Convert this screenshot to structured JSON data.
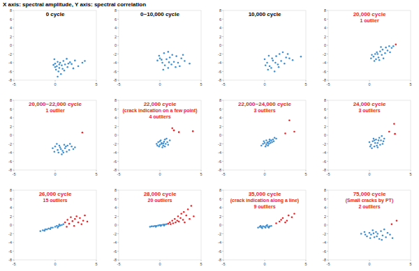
{
  "header": "X axis: spectral amplitude, Y axis: spectral correlation",
  "chart_data": [
    {
      "type": "scatter",
      "title": "0 cycle",
      "xlim": [
        -5,
        5
      ],
      "ylim": [
        -8,
        8
      ],
      "xticks": [
        -5,
        0,
        5
      ],
      "yticks": [
        -8,
        -6,
        -4,
        -2,
        0,
        2,
        4,
        6,
        8
      ],
      "marker": "dot",
      "series": [
        {
          "color": "#3d8fd1",
          "x": [
            0.0,
            0.2,
            0.3,
            0.5,
            0.1,
            -0.2,
            0.6,
            0.8,
            1.0,
            1.2,
            0.4,
            0.7,
            1.5,
            1.8,
            2.0,
            2.4,
            2.8,
            3.3,
            3.6,
            0.9,
            1.1,
            -0.1,
            1.4,
            0.3,
            2.2,
            0.5,
            0.0,
            1.6
          ],
          "values": [
            -4.2,
            -4.8,
            -3.8,
            -5.2,
            -5.6,
            -4.5,
            -4.0,
            -4.6,
            -3.6,
            -4.4,
            -6.0,
            -6.6,
            -5.0,
            -3.9,
            -4.3,
            -3.5,
            -4.8,
            -4.0,
            -3.6,
            -5.4,
            -5.8,
            -3.2,
            -3.1,
            -7.2,
            -5.3,
            -4.4,
            -5.0,
            -4.2
          ]
        }
      ]
    },
    {
      "type": "scatter",
      "title": "0~10,000 cycle",
      "xlim": [
        -5,
        5
      ],
      "ylim": [
        -8,
        8
      ],
      "xticks": [
        -5,
        0,
        5
      ],
      "yticks": [
        -8,
        -6,
        -4,
        -2,
        0,
        2,
        4,
        6,
        8
      ],
      "marker": "dot",
      "series": [
        {
          "color": "#3d8fd1",
          "x": [
            0.5,
            1.0,
            1.5,
            0.0,
            -0.3,
            0.3,
            0.8,
            1.2,
            2.0,
            2.6,
            3.0,
            3.6,
            1.7,
            0.6,
            1.0,
            1.4,
            2.2,
            -0.1,
            0.4,
            2.8,
            1.9,
            0.2,
            1.1,
            2.4
          ],
          "values": [
            -1.8,
            -1.5,
            -2.2,
            -3.0,
            -3.5,
            -4.0,
            -3.2,
            -2.8,
            -2.5,
            -3.0,
            -3.6,
            -4.2,
            -3.8,
            -4.6,
            -5.2,
            -4.4,
            -4.0,
            -2.4,
            -5.6,
            -2.2,
            -5.0,
            -3.3,
            -3.9,
            -4.8
          ]
        }
      ]
    },
    {
      "type": "scatter",
      "title": "10,000 cycle",
      "xlim": [
        -5,
        5
      ],
      "ylim": [
        -8,
        8
      ],
      "xticks": [
        -5,
        0,
        5
      ],
      "yticks": [
        -8,
        -6,
        -4,
        -2,
        0,
        2,
        4,
        6,
        8
      ],
      "marker": "dot",
      "series": [
        {
          "color": "#3d8fd1",
          "x": [
            0.3,
            0.0,
            0.6,
            1.0,
            1.4,
            1.8,
            2.2,
            2.6,
            0.8,
            1.2,
            0.4,
            1.6,
            2.0,
            3.0,
            4.4,
            0.9,
            1.3,
            2.4,
            0.1,
            1.7,
            3.4,
            0.5,
            2.8
          ],
          "values": [
            -4.0,
            -3.2,
            -4.8,
            -3.5,
            -2.5,
            -2.0,
            -1.6,
            -2.8,
            -5.2,
            -6.0,
            -5.6,
            -4.4,
            -3.6,
            -3.0,
            -2.6,
            -3.0,
            -4.0,
            -4.2,
            -4.6,
            -5.0,
            -3.4,
            -2.4,
            -2.0
          ]
        }
      ]
    },
    {
      "type": "scatter",
      "title": "20,000 cycle",
      "subtitle": [
        "1 outlier"
      ],
      "xlim": [
        -5,
        5
      ],
      "ylim": [
        -8,
        8
      ],
      "xticks": [
        -5,
        0,
        5
      ],
      "yticks": [
        -8,
        -6,
        -4,
        -2,
        0,
        2,
        4,
        6,
        8
      ],
      "marker": "dot",
      "series": [
        {
          "color": "#3d8fd1",
          "x": [
            0.2,
            0.5,
            0.8,
            1.0,
            1.3,
            1.6,
            2.0,
            2.4,
            2.7,
            1.1,
            0.6,
            1.5,
            1.9,
            2.2,
            0.9,
            0.3,
            1.7,
            2.5,
            1.2,
            0.7,
            2.9,
            1.4
          ],
          "values": [
            -3.0,
            -2.6,
            -3.2,
            -2.0,
            -1.4,
            -1.0,
            -0.5,
            -0.2,
            -0.6,
            -2.8,
            -3.6,
            -2.2,
            -1.8,
            -1.2,
            -1.6,
            -2.2,
            -3.0,
            -1.6,
            -3.4,
            -2.0,
            -0.2,
            -0.4
          ]
        },
        {
          "color": "#e8262a",
          "x": [
            3.2
          ],
          "values": [
            0.2
          ]
        }
      ]
    },
    {
      "type": "scatter",
      "title": "20,000~22,000 cycle",
      "subtitle": [
        "1 outlier"
      ],
      "xlim": [
        -5,
        5
      ],
      "ylim": [
        -8,
        8
      ],
      "xticks": [
        -5,
        0,
        5
      ],
      "yticks": [
        -8,
        -6,
        -4,
        -2,
        0,
        2,
        4,
        6,
        8
      ],
      "marker": "dot",
      "series": [
        {
          "color": "#3d8fd1",
          "x": [
            -0.3,
            0.0,
            0.3,
            0.6,
            0.9,
            1.2,
            1.5,
            1.8,
            2.2,
            0.4,
            0.8,
            1.1,
            1.4,
            0.2,
            1.7,
            2.0,
            0.7,
            -0.1,
            1.0,
            2.4,
            0.5,
            1.3
          ],
          "values": [
            -3.0,
            -2.6,
            -3.4,
            -2.8,
            -3.6,
            -3.0,
            -2.4,
            -2.0,
            -3.2,
            -4.0,
            -4.4,
            -2.2,
            -3.8,
            -2.0,
            -3.4,
            -2.6,
            -3.2,
            -3.8,
            -4.0,
            -2.8,
            -2.4,
            -2.6
          ]
        },
        {
          "color": "#e8262a",
          "x": [
            3.3
          ],
          "values": [
            0.6
          ]
        }
      ]
    },
    {
      "type": "scatter",
      "title": "22,000 cycle",
      "subtitle": [
        "(crack indication on a few point)",
        "4 outliers"
      ],
      "xlim": [
        -5,
        5
      ],
      "ylim": [
        -8,
        8
      ],
      "xticks": [
        -5,
        0,
        5
      ],
      "yticks": [
        -8,
        -6,
        -4,
        -2,
        0,
        2,
        4,
        6,
        8
      ],
      "marker": "dot",
      "series": [
        {
          "color": "#3d8fd1",
          "x": [
            -0.4,
            -0.2,
            0.0,
            0.2,
            0.4,
            0.1,
            0.5,
            0.7,
            0.3,
            -0.1,
            0.6,
            0.9,
            1.0,
            0.8,
            0.2,
            -0.3,
            0.4,
            0.6,
            0.0,
            1.2
          ],
          "values": [
            -2.0,
            -1.6,
            -2.2,
            -1.8,
            -2.4,
            -1.2,
            -1.5,
            -2.0,
            -2.8,
            -2.6,
            -1.0,
            -1.6,
            -2.2,
            -0.8,
            -2.0,
            -2.4,
            -1.9,
            -2.6,
            -1.4,
            -1.2
          ]
        },
        {
          "color": "#e8262a",
          "x": [
            1.5,
            1.7,
            2.3,
            4.0
          ],
          "values": [
            1.6,
            1.1,
            0.7,
            0.9
          ]
        }
      ]
    },
    {
      "type": "scatter",
      "title": "22,000~24,000 cycle",
      "subtitle": [
        "3 outliers"
      ],
      "xlim": [
        -5,
        5
      ],
      "ylim": [
        -8,
        8
      ],
      "xticks": [
        -5,
        0,
        5
      ],
      "yticks": [
        -8,
        -6,
        -4,
        -2,
        0,
        2,
        4,
        6,
        8
      ],
      "marker": "dot",
      "series": [
        {
          "color": "#3d8fd1",
          "x": [
            -0.4,
            -0.2,
            0.0,
            0.2,
            0.4,
            0.6,
            0.8,
            1.0,
            1.2,
            0.3,
            0.5,
            0.1,
            0.7,
            0.9,
            1.4,
            -0.1,
            0.4,
            0.6,
            1.1,
            0.2
          ],
          "values": [
            -2.4,
            -2.0,
            -1.8,
            -2.2,
            -1.6,
            -1.4,
            -1.2,
            -1.0,
            -0.6,
            -1.8,
            -2.0,
            -2.6,
            -1.8,
            -1.6,
            -0.8,
            -1.4,
            -2.4,
            -1.0,
            -1.4,
            -1.2
          ]
        },
        {
          "color": "#e8262a",
          "x": [
            2.5,
            3.0,
            3.6
          ],
          "values": [
            0.4,
            3.4,
            0.8
          ]
        }
      ]
    },
    {
      "type": "scatter",
      "title": "24,000 cycle",
      "subtitle": [
        "3 outliers"
      ],
      "xlim": [
        -5,
        5
      ],
      "ylim": [
        -8,
        8
      ],
      "xticks": [
        -5,
        0,
        5
      ],
      "yticks": [
        -8,
        -6,
        -4,
        -2,
        0,
        2,
        4,
        6,
        8
      ],
      "marker": "dot",
      "series": [
        {
          "color": "#3d8fd1",
          "x": [
            0.0,
            0.2,
            0.4,
            0.6,
            0.8,
            1.0,
            1.2,
            1.4,
            1.6,
            1.8,
            0.3,
            0.7,
            0.9,
            1.1,
            0.5,
            1.3,
            0.1,
            1.5,
            0.6,
            1.0,
            1.7
          ],
          "values": [
            -1.6,
            -2.2,
            -1.4,
            -2.6,
            -1.0,
            -1.8,
            -0.6,
            -1.2,
            -2.0,
            -0.8,
            -3.0,
            -1.8,
            -2.4,
            -1.2,
            -0.8,
            -2.2,
            -2.6,
            -0.2,
            -1.2,
            -2.8,
            -1.4
          ]
        },
        {
          "color": "#e8262a",
          "x": [
            2.4,
            3.0,
            3.1
          ],
          "values": [
            0.8,
            2.6,
            0.3
          ]
        }
      ]
    },
    {
      "type": "scatter",
      "title": "26,000 cycle",
      "subtitle": [
        "15 outliers"
      ],
      "xlim": [
        -5,
        5
      ],
      "ylim": [
        -8,
        8
      ],
      "xticks": [
        -5,
        0,
        5
      ],
      "yticks": [
        -8,
        -6,
        -4,
        -2,
        0,
        2,
        4,
        6,
        8
      ],
      "marker": "dot",
      "series": [
        {
          "color": "#3d8fd1",
          "x": [
            -1.8,
            -1.5,
            -1.2,
            -1.0,
            -0.8,
            -0.5,
            -0.3,
            0.0,
            0.2,
            0.4,
            0.6,
            0.8,
            1.0,
            -0.6,
            0.3,
            -1.3,
            0.5
          ],
          "values": [
            -1.4,
            -1.2,
            -1.0,
            -1.0,
            -0.8,
            -0.6,
            -0.6,
            -0.4,
            -0.2,
            -0.3,
            -0.1,
            0.0,
            0.2,
            -0.9,
            -0.6,
            -1.3,
            0.1
          ]
        },
        {
          "color": "#e8262a",
          "x": [
            1.2,
            1.5,
            1.7,
            1.9,
            2.1,
            2.3,
            2.4,
            2.6,
            2.8,
            3.0,
            3.2,
            3.4,
            3.6,
            3.9,
            1.4
          ],
          "values": [
            0.6,
            1.2,
            0.3,
            1.8,
            0.9,
            -0.2,
            1.4,
            2.0,
            0.6,
            1.6,
            0.2,
            1.0,
            2.2,
            0.8,
            -0.4
          ]
        }
      ]
    },
    {
      "type": "scatter",
      "title": "28,000 cycle",
      "subtitle": [
        "20 outliers"
      ],
      "xlim": [
        -5,
        5
      ],
      "ylim": [
        -8,
        8
      ],
      "xticks": [
        -5,
        0,
        5
      ],
      "yticks": [
        -8,
        -6,
        -4,
        -2,
        0,
        2,
        4,
        6,
        8
      ],
      "marker": "dot",
      "series": [
        {
          "color": "#3d8fd1",
          "x": [
            -1.2,
            -1.0,
            -0.8,
            -0.6,
            -0.4,
            -0.2,
            0.0,
            0.2,
            0.4,
            0.6,
            0.8,
            -0.5,
            0.1,
            0.5
          ],
          "values": [
            -0.4,
            -0.3,
            -0.3,
            -0.2,
            -0.2,
            -0.1,
            0.0,
            0.0,
            0.1,
            0.1,
            0.2,
            -0.4,
            -0.2,
            -0.1
          ]
        },
        {
          "color": "#e8262a",
          "x": [
            1.0,
            1.2,
            1.3,
            1.5,
            1.6,
            1.8,
            1.9,
            2.1,
            2.2,
            2.3,
            2.5,
            2.6,
            2.8,
            2.9,
            3.0,
            3.2,
            3.4,
            3.6,
            3.8,
            4.1
          ],
          "values": [
            0.3,
            0.6,
            0.2,
            1.0,
            0.4,
            1.4,
            0.6,
            1.0,
            2.0,
            0.8,
            1.6,
            2.6,
            1.2,
            3.0,
            0.6,
            2.2,
            3.6,
            1.4,
            4.4,
            2.0
          ]
        }
      ]
    },
    {
      "type": "scatter",
      "title": "35,000 cycle",
      "subtitle": [
        "(crack indication along a line)",
        "9 outliers"
      ],
      "xlim": [
        -5,
        5
      ],
      "ylim": [
        -8,
        8
      ],
      "xticks": [
        -5,
        0,
        5
      ],
      "yticks": [
        -8,
        -6,
        -4,
        -2,
        0,
        2,
        4,
        6,
        8
      ],
      "marker": "dot",
      "series": [
        {
          "color": "#3d8fd1",
          "x": [
            -0.8,
            -0.6,
            -0.4,
            -0.2,
            0.0,
            0.2,
            0.4,
            0.6,
            0.8,
            -0.3,
            0.1,
            0.5,
            -0.5,
            0.3
          ],
          "values": [
            -0.6,
            -0.4,
            -0.5,
            -0.3,
            -0.4,
            -0.2,
            -0.4,
            -0.3,
            -0.2,
            -0.7,
            -0.6,
            -0.6,
            -0.2,
            0.0
          ]
        },
        {
          "color": "#e8262a",
          "x": [
            1.4,
            1.8,
            2.0,
            2.2,
            2.5,
            2.7,
            2.9,
            3.3,
            3.6
          ],
          "values": [
            0.4,
            0.8,
            1.2,
            1.6,
            0.6,
            1.0,
            2.2,
            1.8,
            2.6
          ]
        }
      ]
    },
    {
      "type": "scatter",
      "title": "75,000 cycle",
      "subtitle": [
        "(Small cracks by PT)",
        "2 outliers"
      ],
      "xlim": [
        -5,
        5
      ],
      "ylim": [
        -8,
        8
      ],
      "xticks": [
        -5,
        0,
        5
      ],
      "yticks": [
        -8,
        -6,
        -4,
        -2,
        0,
        2,
        4,
        6,
        8
      ],
      "marker": "dot",
      "series": [
        {
          "color": "#3d8fd1",
          "x": [
            -1.0,
            -0.6,
            -0.3,
            0.0,
            0.2,
            0.4,
            0.6,
            0.8,
            1.0,
            1.2,
            1.4,
            1.6,
            1.8,
            2.0,
            2.2,
            2.5,
            2.8,
            0.1,
            -0.5,
            0.9,
            1.5,
            0.5
          ],
          "values": [
            -2.0,
            -1.6,
            -2.6,
            -1.8,
            -2.2,
            -1.2,
            -2.8,
            -1.6,
            -2.0,
            -3.2,
            -1.4,
            -2.4,
            -1.0,
            -2.8,
            -1.8,
            -2.2,
            -3.0,
            -3.0,
            -2.2,
            -2.6,
            -3.4,
            -1.9
          ]
        },
        {
          "color": "#e8262a",
          "x": [
            2.7,
            3.3
          ],
          "values": [
            0.2,
            1.0
          ]
        }
      ]
    }
  ]
}
